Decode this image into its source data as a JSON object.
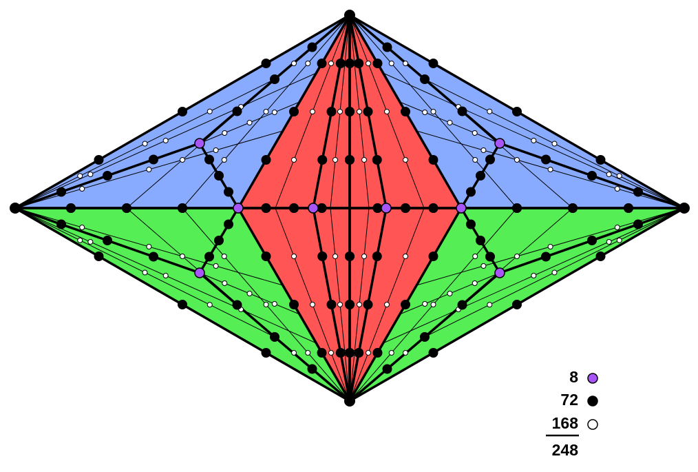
{
  "legend": {
    "items": [
      {
        "label": "8",
        "color": "#a855f7"
      },
      {
        "label": "72",
        "color": "#000000"
      },
      {
        "label": "168",
        "color": "#ffffff"
      }
    ],
    "total": "248"
  }
}
